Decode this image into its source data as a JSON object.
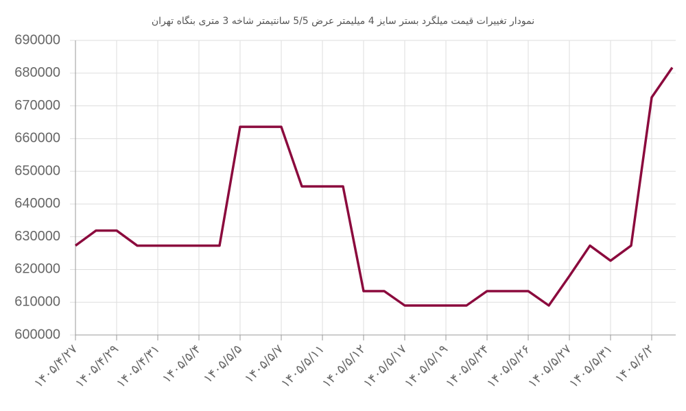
{
  "chart_data": {
    "type": "line",
    "title": "نمودار تغییرات قیمت میلگرد بستر سایز 4 میلیمتر عرض 5/5 سانتیمتر شاخه 3 متری بنگاه تهران",
    "categories": [
      "۱۴۰۵/۴/۲۷",
      null,
      "۱۴۰۵/۴/۲۹",
      null,
      "۱۴۰۵/۴/۳۱",
      null,
      "۱۴۰۵/۵/۴",
      null,
      "۱۴۰۵/۵/۵",
      null,
      "۱۴۰۵/۵/۷",
      null,
      "۱۴۰۵/۵/۱۱",
      null,
      "۱۴۰۵/۵/۱۲",
      null,
      "۱۴۰۵/۵/۱۷",
      null,
      "۱۴۰۵/۵/۱۹",
      null,
      "۱۴۰۵/۵/۲۴",
      null,
      "۱۴۰۵/۵/۲۶",
      null,
      "۱۴۰۵/۵/۲۷",
      null,
      "۱۴۰۵/۵/۳۱",
      null,
      "۱۴۰۵/۶/۲",
      null
    ],
    "series": [
      {
        "color": "#8b0a3d",
        "values": [
          627300,
          631900,
          631900,
          627300,
          627300,
          627300,
          627300,
          627300,
          663600,
          663600,
          663600,
          645400,
          645400,
          645400,
          613400,
          613400,
          609000,
          609000,
          609000,
          609000,
          613400,
          613400,
          613400,
          609000,
          618000,
          627300,
          622700,
          627300,
          672600,
          681700
        ]
      }
    ],
    "ylim": [
      600000,
      690000
    ],
    "yticks": [
      600000,
      610000,
      620000,
      630000,
      640000,
      650000,
      660000,
      670000,
      680000,
      690000
    ],
    "grid": true
  }
}
